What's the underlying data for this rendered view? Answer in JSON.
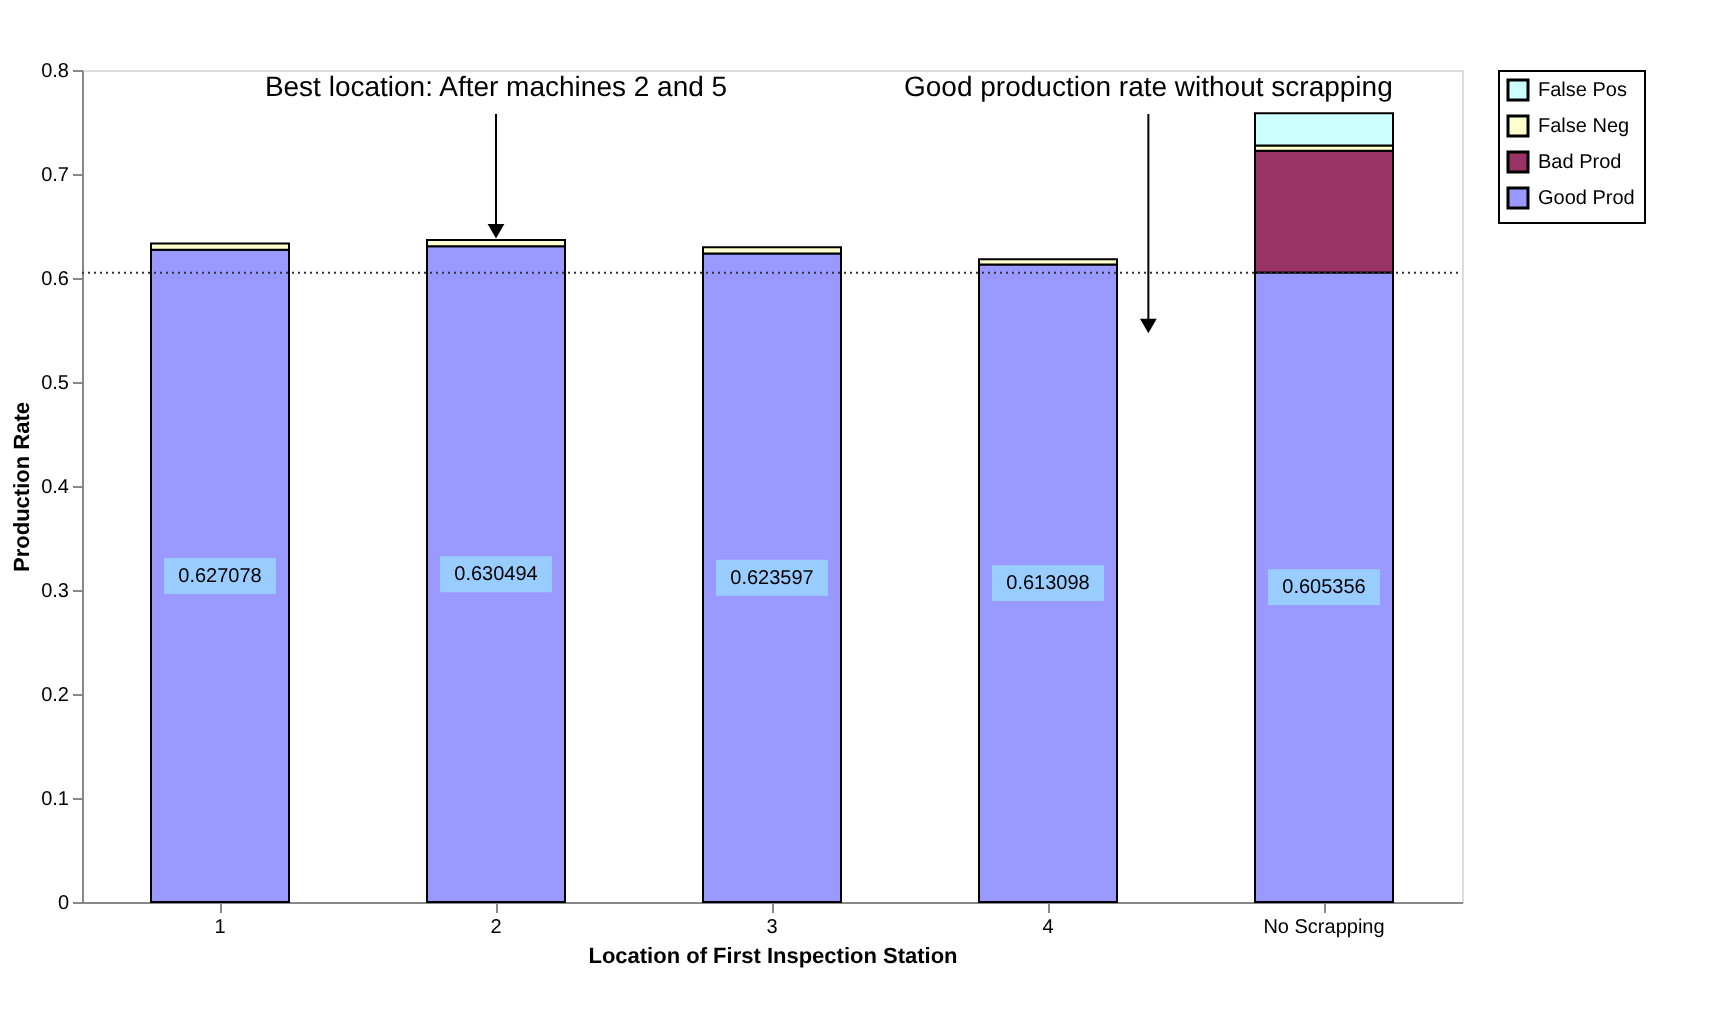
{
  "chart_data": {
    "type": "bar",
    "stacked": true,
    "xlabel": "Location of First Inspection Station",
    "ylabel": "Production Rate",
    "categories": [
      "1",
      "2",
      "3",
      "4",
      "No Scrapping"
    ],
    "series": [
      {
        "name": "Good Prod",
        "color": "#9999ff",
        "values": [
          0.627078,
          0.630494,
          0.623597,
          0.613098,
          0.605356
        ],
        "value_labels": [
          "0.627078",
          "0.630494",
          "0.623597",
          "0.613098",
          "0.605356"
        ]
      },
      {
        "name": "Bad Prod",
        "color": "#993366",
        "values": [
          null,
          null,
          null,
          null,
          0.117
        ]
      },
      {
        "name": "False Neg",
        "color": "#ffffcc",
        "values": [
          0.006,
          0.006,
          0.006,
          0.005,
          0.005
        ]
      },
      {
        "name": "False Pos",
        "color": "#ccffff",
        "values": [
          null,
          null,
          null,
          null,
          0.031
        ]
      }
    ],
    "ylim": [
      0,
      0.8
    ],
    "yticks": [
      0,
      0.1,
      0.2,
      0.3,
      0.4,
      0.5,
      0.6,
      0.7,
      0.8
    ],
    "ref_lines": [
      {
        "axis": "y",
        "value": 0.605,
        "line_style": "dotted",
        "color": "#333333"
      }
    ],
    "annotations": [
      {
        "text": "Best location: After machines 2 and 5",
        "x": "2",
        "y": 0.645
      },
      "Good production rate without scrapping"
    ],
    "legend": "right",
    "grid": false
  }
}
